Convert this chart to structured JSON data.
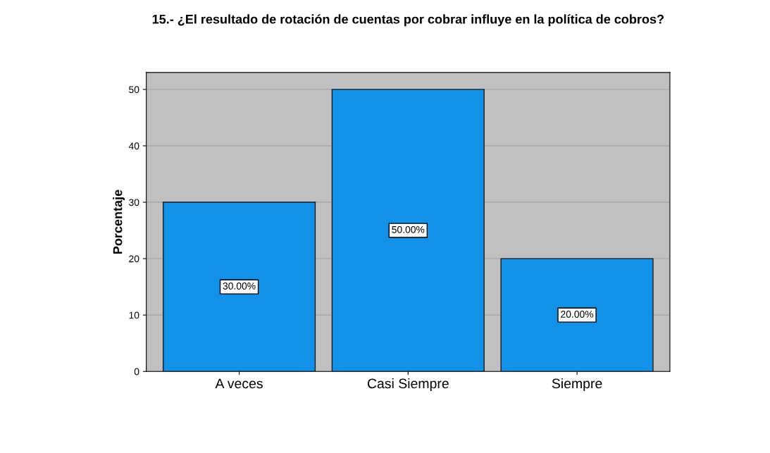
{
  "chart_data": {
    "type": "bar",
    "title": "15.- ¿El resultado de rotación de cuentas por cobrar influye en la política de cobros?",
    "ylabel": "Porcentaje",
    "categories": [
      "A veces",
      "Casi Siempre",
      "Siempre"
    ],
    "values": [
      30,
      50,
      20
    ],
    "value_labels": [
      "30.00%",
      "50.00%",
      "20.00%"
    ],
    "color": "#1192e8",
    "ylim": [
      0,
      53
    ],
    "yticks": [
      0,
      10,
      20,
      30,
      40,
      50
    ],
    "grid": "y"
  }
}
